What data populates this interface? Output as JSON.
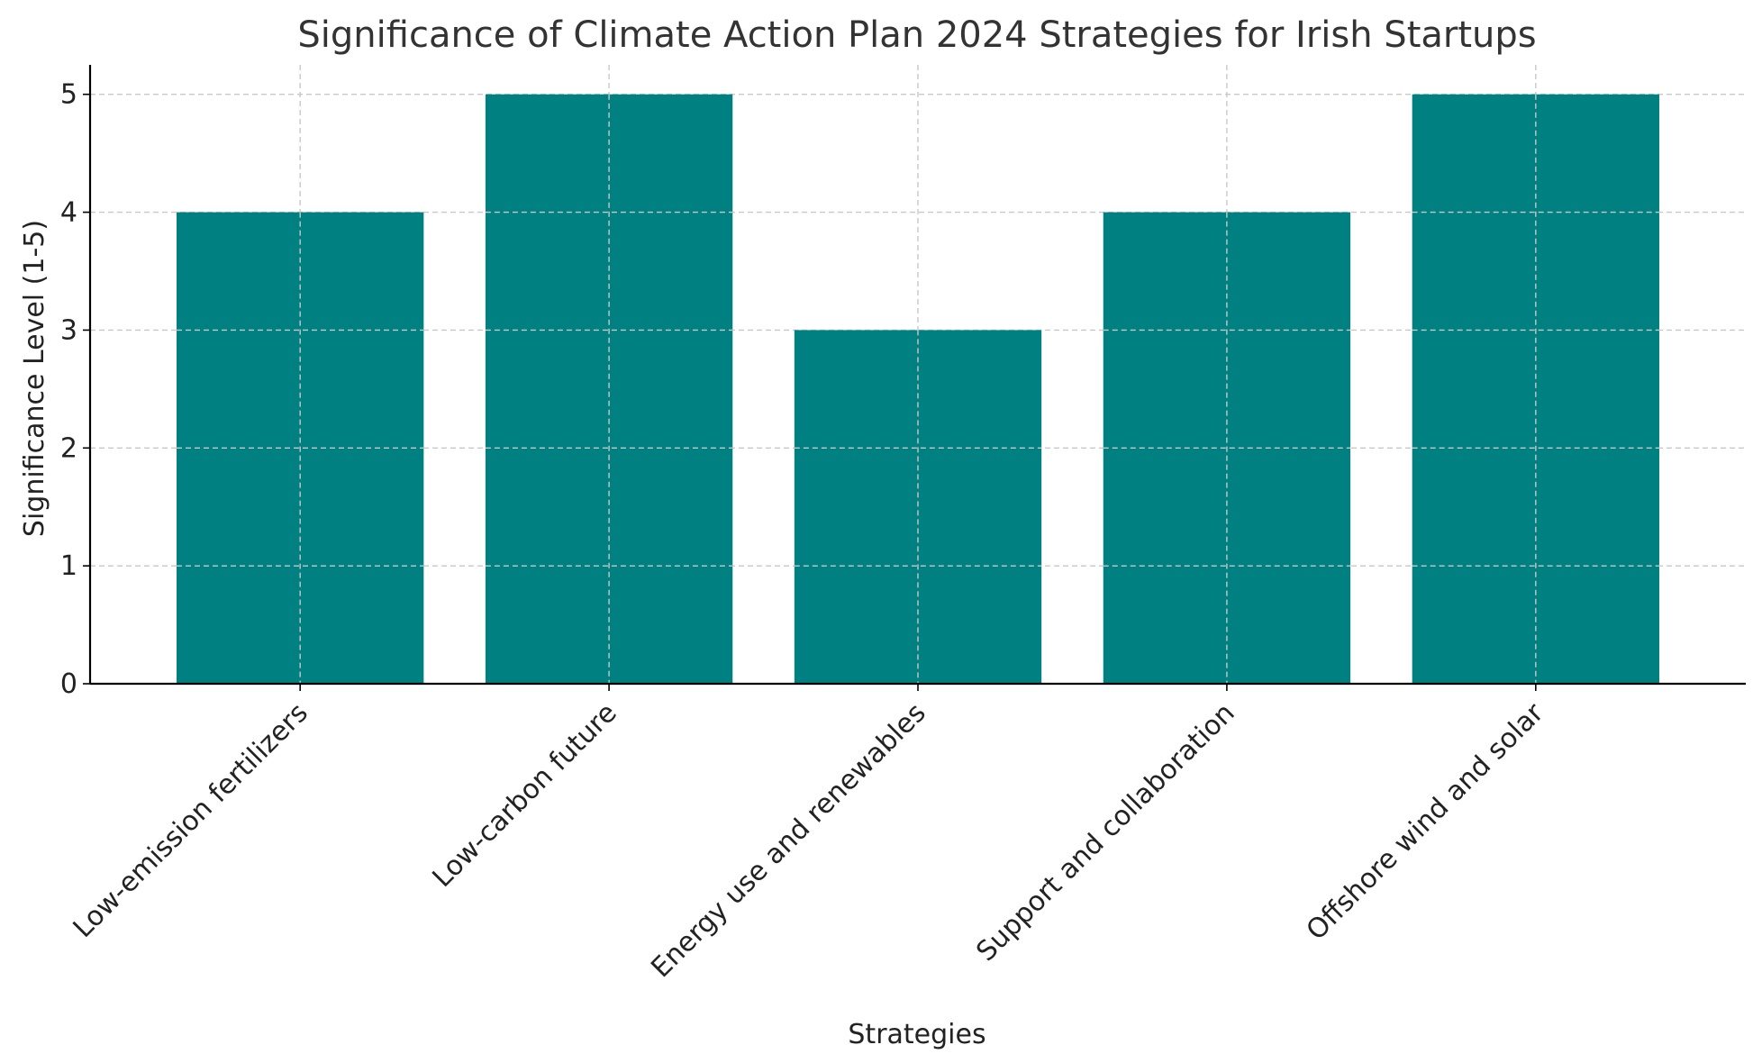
{
  "chart_data": {
    "type": "bar",
    "title": "Significance of Climate Action Plan 2024 Strategies for Irish Startups",
    "xlabel": "Strategies",
    "ylabel": "Significance Level (1-5)",
    "categories": [
      "Low-emission fertilizers",
      "Low-carbon future",
      "Energy use and renewables",
      "Support and collaboration",
      "Offshore wind and solar"
    ],
    "values": [
      4,
      5,
      3,
      4,
      5
    ],
    "ylim": [
      0,
      5.25
    ],
    "yticks": [
      0,
      1,
      2,
      3,
      4,
      5
    ],
    "grid": true,
    "bar_color": "#008080"
  }
}
